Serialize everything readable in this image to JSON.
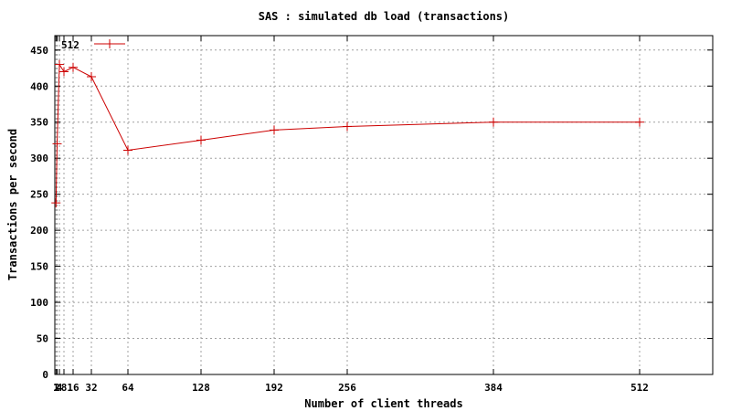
{
  "chart_data": {
    "type": "line",
    "title": "SAS : simulated db load (transactions)",
    "xlabel": "Number of client threads",
    "ylabel": "Transactions per second",
    "xlim": [
      0,
      576
    ],
    "ylim": [
      0,
      470
    ],
    "xticks": [
      1,
      2,
      4,
      8,
      16,
      32,
      64,
      128,
      192,
      256,
      384,
      512
    ],
    "yticks": [
      0,
      50,
      100,
      150,
      200,
      250,
      300,
      350,
      400,
      450
    ],
    "grid": true,
    "legend_position": "top-left",
    "series": [
      {
        "name": "512",
        "color": "#cc0000",
        "marker": "plus",
        "x": [
          1,
          2,
          4,
          8,
          16,
          32,
          64,
          128,
          192,
          256,
          384,
          512
        ],
        "y": [
          238,
          320,
          430,
          420,
          426,
          413,
          311,
          325,
          339,
          344,
          350,
          350
        ]
      }
    ]
  }
}
